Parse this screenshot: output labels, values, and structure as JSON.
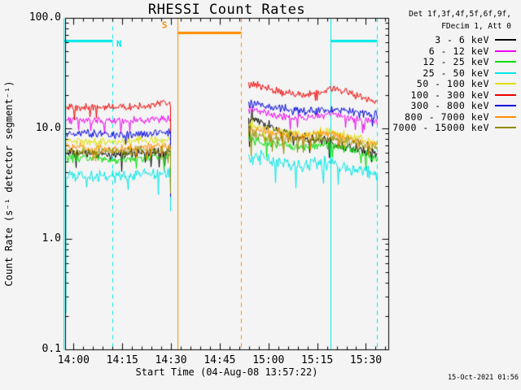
{
  "title": "RHESSI Count Rates",
  "timestamp": "15-Oct-2021 01:56",
  "x_axis": {
    "label": "Start Time (04-Aug-08 13:57:22)",
    "start_time": "04-Aug-08 13:57:22",
    "total_minutes": 99.5,
    "minor_step_min": 3,
    "major_ticks": [
      {
        "t": 2.6,
        "label": "14:00"
      },
      {
        "t": 17.6,
        "label": "14:15"
      },
      {
        "t": 32.6,
        "label": "14:30"
      },
      {
        "t": 47.6,
        "label": "14:45"
      },
      {
        "t": 62.6,
        "label": "15:00"
      },
      {
        "t": 77.6,
        "label": "15:15"
      },
      {
        "t": 92.6,
        "label": "15:30"
      }
    ]
  },
  "y_axis": {
    "label": "Count Rate (s⁻¹ detector segment⁻¹)",
    "scale": "log",
    "range": [
      0.1,
      100
    ],
    "ticks": [
      {
        "v": 100,
        "label": "100.0"
      },
      {
        "v": 10,
        "label": "10.0"
      },
      {
        "v": 1,
        "label": "1.0"
      },
      {
        "v": 0.1,
        "label": "0.1"
      }
    ]
  },
  "legend": {
    "header1": "Det 1f,3f,4f,5f,6f,9f,",
    "header2": "FDecim 1, Att 0",
    "entries": [
      {
        "label": "3 - 6 keV",
        "color": "#000000"
      },
      {
        "label": "6 - 12 keV",
        "color": "#ee00ee"
      },
      {
        "label": "12 - 25 keV",
        "color": "#00dd00"
      },
      {
        "label": "25 - 50 keV",
        "color": "#00e8e8"
      },
      {
        "label": "50 - 100 keV",
        "color": "#e0e000"
      },
      {
        "label": "100 - 300 keV",
        "color": "#ee0000"
      },
      {
        "label": "300 - 800 keV",
        "color": "#0000dd"
      },
      {
        "label": "800 - 7000 keV",
        "color": "#ff8c00"
      },
      {
        "label": "7000 - 15000 keV",
        "color": "#8e8e00"
      }
    ]
  },
  "annotations": {
    "lines": [
      {
        "t": -0.4,
        "style": "solid",
        "color": "#00e8e8"
      },
      {
        "t": 14.5,
        "style": "dashed",
        "color": "#00e8e8"
      },
      {
        "t": 34.6,
        "style": "solid",
        "color": "#ff8c00"
      },
      {
        "t": 54.1,
        "style": "dashed",
        "color": "#ff8c00"
      },
      {
        "t": 81.7,
        "style": "solid",
        "color": "#00e8e8"
      },
      {
        "t": 96.0,
        "style": "dashed",
        "color": "#00e8e8"
      }
    ],
    "bars": [
      {
        "t0": -0.4,
        "t1": 14.5,
        "v": 62,
        "color": "#00e8e8",
        "label": "N",
        "label_t": 16.6,
        "label_v": 58
      },
      {
        "t0": 34.6,
        "t1": 54.1,
        "v": 74,
        "color": "#ff8c00",
        "label": "S",
        "label_t": 30.6,
        "label_v": 86
      },
      {
        "t0": 81.7,
        "t1": 96.0,
        "v": 62,
        "color": "#00e8e8",
        "label": ""
      }
    ]
  },
  "chart_data": {
    "type": "line",
    "x_unit": "minutes since 04-Aug-08 13:57:22",
    "y_unit": "counts s⁻¹ detector segment⁻¹",
    "ylim": [
      0.1,
      100
    ],
    "grid": false,
    "legend_position": "right-outside",
    "data_gap_minutes": [
      32.3,
      56.4
    ],
    "series": [
      {
        "name": "3 - 6 keV",
        "color": "#000000",
        "noise": 0.055,
        "segments": [
          {
            "points": [
              [
                0.3,
                6.0
              ],
              [
                15,
                5.8
              ],
              [
                32.3,
                6.2
              ]
            ],
            "end_drop": 0.4
          },
          {
            "points": [
              [
                56.4,
                12.6
              ],
              [
                60.2,
                11.5
              ],
              [
                66.4,
                9.5
              ],
              [
                73.9,
                8.3
              ],
              [
                80.2,
                7.9
              ],
              [
                85.2,
                7.1
              ],
              [
                91.5,
                6.3
              ],
              [
                96,
                5.9
              ]
            ],
            "head_boost": 2
          }
        ]
      },
      {
        "name": "6 - 12 keV",
        "color": "#ee00ee",
        "noise": 0.042,
        "segments": [
          {
            "points": [
              [
                0.3,
                12.0
              ],
              [
                15,
                11.7
              ],
              [
                32.3,
                12.3
              ]
            ],
            "end_drop": 0.4
          },
          {
            "points": [
              [
                56.4,
                14.8
              ],
              [
                62.7,
                13.5
              ],
              [
                70.2,
                12.6
              ],
              [
                77.7,
                12.9
              ],
              [
                82.7,
                13.5
              ],
              [
                90.2,
                12.0
              ],
              [
                96,
                11.5
              ]
            ],
            "head_boost": 2
          }
        ]
      },
      {
        "name": "12 - 25 keV",
        "color": "#00dd00",
        "noise": 0.05,
        "segments": [
          {
            "points": [
              [
                0.3,
                5.5
              ],
              [
                15,
                5.2
              ],
              [
                32.3,
                5.6
              ]
            ],
            "end_drop": 0.4
          },
          {
            "points": [
              [
                56.4,
                7.9
              ],
              [
                65.2,
                7.2
              ],
              [
                72.7,
                6.8
              ],
              [
                80.2,
                7.2
              ],
              [
                85.2,
                6.8
              ],
              [
                92.7,
                5.8
              ],
              [
                96,
                5.3
              ]
            ],
            "head_boost": 2
          }
        ]
      },
      {
        "name": "25 - 50 keV",
        "color": "#00e8e8",
        "noise": 0.075,
        "segments": [
          {
            "points": [
              [
                0.3,
                3.9
              ],
              [
                15,
                3.7
              ],
              [
                32.3,
                4.0
              ]
            ],
            "start_drop": 0.055,
            "end_drop": 0.45
          },
          {
            "points": [
              [
                56.4,
                5.8
              ],
              [
                65.2,
                5.0
              ],
              [
                72.7,
                4.6
              ],
              [
                80.2,
                5.0
              ],
              [
                85.2,
                4.6
              ],
              [
                92.7,
                4.0
              ],
              [
                96,
                3.8
              ]
            ],
            "head_boost": 2,
            "end_drop": 0.6
          }
        ]
      },
      {
        "name": "50 - 100 keV",
        "color": "#e0e000",
        "noise": 0.05,
        "segments": [
          {
            "points": [
              [
                0.3,
                7.9
              ],
              [
                15,
                7.6
              ],
              [
                32.3,
                8.1
              ]
            ],
            "end_drop": 0.4
          },
          {
            "points": [
              [
                56.4,
                10.5
              ],
              [
                65.2,
                9.5
              ],
              [
                72.7,
                8.9
              ],
              [
                80.2,
                9.5
              ],
              [
                85.2,
                8.9
              ],
              [
                92.7,
                7.8
              ],
              [
                96,
                7.4
              ]
            ],
            "head_boost": 2
          }
        ]
      },
      {
        "name": "100 - 300 keV",
        "color": "#ee0000",
        "noise": 0.042,
        "segments": [
          {
            "points": [
              [
                0.3,
                15.8
              ],
              [
                12.5,
                15.5
              ],
              [
                25.1,
                16.2
              ],
              [
                31.3,
                17.4
              ],
              [
                32.3,
                16.6
              ]
            ],
            "end_drop": 0.33
          },
          {
            "points": [
              [
                56.4,
                26.9
              ],
              [
                60.2,
                24.0
              ],
              [
                66.4,
                21.4
              ],
              [
                73.9,
                20.0
              ],
              [
                80.2,
                22.4
              ],
              [
                83.2,
                22.9
              ],
              [
                89,
                20.0
              ],
              [
                95.2,
                18.2
              ],
              [
                96,
                17.4
              ]
            ],
            "head_boost": 2
          }
        ]
      },
      {
        "name": "300 - 800 keV",
        "color": "#0000dd",
        "noise": 0.05,
        "segments": [
          {
            "points": [
              [
                0.3,
                9.1
              ],
              [
                15,
                8.9
              ],
              [
                32.3,
                9.3
              ]
            ],
            "end_drop": 0.26
          },
          {
            "points": [
              [
                56.4,
                17.0
              ],
              [
                62.7,
                16.2
              ],
              [
                70.2,
                14.5
              ],
              [
                77.7,
                14.5
              ],
              [
                82.7,
                15.1
              ],
              [
                90.2,
                13.5
              ],
              [
                96,
                13.2
              ]
            ],
            "head_boost": 2
          }
        ]
      },
      {
        "name": "800 - 7000 keV",
        "color": "#ff8c00",
        "noise": 0.05,
        "segments": [
          {
            "points": [
              [
                0.3,
                6.9
              ],
              [
                15,
                6.6
              ],
              [
                32.3,
                7.1
              ]
            ],
            "end_drop": 0.4
          },
          {
            "points": [
              [
                56.4,
                10.0
              ],
              [
                65.2,
                9.1
              ],
              [
                72.7,
                8.5
              ],
              [
                80.2,
                9.1
              ],
              [
                85.2,
                8.5
              ],
              [
                92.7,
                7.4
              ],
              [
                96,
                7.1
              ]
            ],
            "head_boost": 2
          }
        ]
      },
      {
        "name": "7000 - 15000 keV",
        "color": "#8e8e00",
        "noise": 0.05,
        "segments": [
          {
            "points": [
              [
                0.3,
                6.3
              ],
              [
                15,
                6.2
              ],
              [
                32.3,
                6.5
              ]
            ],
            "end_drop": 0.4
          },
          {
            "points": [
              [
                56.4,
                8.9
              ],
              [
                65.2,
                8.3
              ],
              [
                72.7,
                7.9
              ],
              [
                80.2,
                8.5
              ],
              [
                85.2,
                7.9
              ],
              [
                92.7,
                7.1
              ],
              [
                96,
                6.8
              ]
            ],
            "head_boost": 2
          }
        ]
      }
    ]
  }
}
